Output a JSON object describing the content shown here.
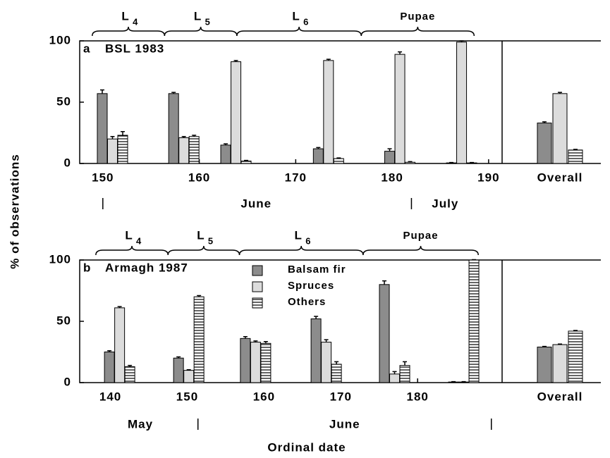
{
  "chart_data": [
    {
      "type": "bar",
      "panel_label": "a",
      "title": "BSL 1983",
      "ylabel": "% of observations",
      "xlim": [
        147.6,
        191.4
      ],
      "xticks": [
        150,
        160,
        170,
        180,
        190
      ],
      "ylim": [
        0,
        100
      ],
      "yticks": [
        0,
        50,
        100
      ],
      "x": [
        151,
        158.4,
        163.8,
        173.4,
        180.8,
        187.2
      ],
      "overall_label": "Overall",
      "series": [
        {
          "name": "Balsam fir",
          "color": "#8c8c8c",
          "values": [
            57,
            57,
            15,
            12,
            10,
            0.5
          ],
          "errors": [
            3,
            1,
            1,
            1,
            2,
            0.3
          ],
          "overall": 33,
          "overall_error": 1
        },
        {
          "name": "Spruces",
          "color": "#dcdcdc",
          "values": [
            20,
            21,
            83,
            84,
            89,
            99
          ],
          "errors": [
            2,
            1,
            1,
            1,
            2,
            1
          ],
          "overall": 57,
          "overall_error": 1
        },
        {
          "name": "Others",
          "color": "#ffffff",
          "pattern": "horizontal",
          "values": [
            23,
            22,
            2,
            4,
            1,
            0.5
          ],
          "errors": [
            3,
            1,
            0.5,
            0.5,
            0.5,
            0.3
          ],
          "overall": 11,
          "overall_error": 0.5
        }
      ],
      "stages": [
        {
          "label": "L",
          "sub": "4",
          "start": 148.9,
          "end": 156.4
        },
        {
          "label": "L",
          "sub": "5",
          "start": 156.4,
          "end": 163.9
        },
        {
          "label": "L",
          "sub": "6",
          "start": 163.9,
          "end": 176.8
        },
        {
          "label": "Pupae",
          "start": 176.8,
          "end": 188.5
        }
      ],
      "month_breaks": [
        150,
        182
      ],
      "months": [
        {
          "label": "June",
          "at": 165.9
        },
        {
          "label": "July",
          "at": 185.5
        }
      ],
      "legend": false
    },
    {
      "type": "bar",
      "panel_label": "b",
      "title": "Armagh 1987",
      "xlabel": "Ordinal date",
      "xlim": [
        136,
        191
      ],
      "xticks": [
        140,
        150,
        160,
        170,
        180
      ],
      "ylim": [
        0,
        100
      ],
      "yticks": [
        0,
        50,
        100
      ],
      "x": [
        141.2,
        150.2,
        158.9,
        168.1,
        177,
        186
      ],
      "overall_label": "Overall",
      "series": [
        {
          "name": "Balsam fir",
          "color": "#8c8c8c",
          "values": [
            25,
            20,
            36,
            52,
            80,
            0.5
          ],
          "errors": [
            1,
            1,
            1.5,
            2,
            3,
            0.3
          ],
          "overall": 29,
          "overall_error": 0.5
        },
        {
          "name": "Spruces",
          "color": "#dcdcdc",
          "values": [
            61,
            10,
            33,
            33,
            7,
            0.5
          ],
          "errors": [
            1,
            0.5,
            1,
            2,
            2,
            0.3
          ],
          "overall": 31,
          "overall_error": 0.5
        },
        {
          "name": "Others",
          "color": "#ffffff",
          "pattern": "horizontal",
          "values": [
            13,
            70,
            32,
            15,
            14,
            100
          ],
          "errors": [
            1,
            1,
            1.5,
            2,
            3,
            0.3
          ],
          "overall": 42,
          "overall_error": 0.5
        }
      ],
      "stages": [
        {
          "label": "L",
          "sub": "4",
          "start": 138.1,
          "end": 147.5
        },
        {
          "label": "L",
          "sub": "5",
          "start": 147.5,
          "end": 156.8
        },
        {
          "label": "L",
          "sub": "6",
          "start": 156.8,
          "end": 172.9
        },
        {
          "label": "Pupae",
          "start": 172.9,
          "end": 187.9
        }
      ],
      "month_breaks": [
        151.4,
        189.6
      ],
      "months": [
        {
          "label": "May",
          "at": 143.9
        },
        {
          "label": "June",
          "at": 170.5
        }
      ],
      "legend": true
    }
  ]
}
